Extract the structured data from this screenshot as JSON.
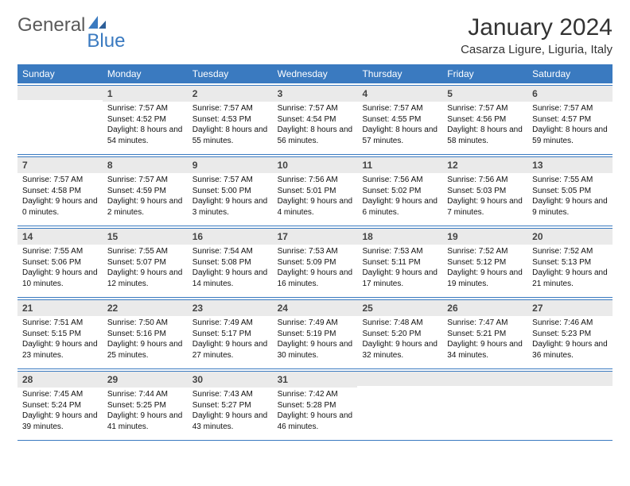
{
  "brand": {
    "name1": "General",
    "name2": "Blue"
  },
  "title": "January 2024",
  "location": "Casarza Ligure, Liguria, Italy",
  "colors": {
    "header_bg": "#3a7ac0",
    "header_text": "#ffffff",
    "daynum_bg": "#eaeaea",
    "rule": "#3a7ac0",
    "page_bg": "#ffffff",
    "text": "#000000",
    "logo_gray": "#5a5a5a",
    "logo_blue": "#3a7ac0"
  },
  "fonts": {
    "title_pt": 30,
    "location_pt": 15,
    "weekday_pt": 12,
    "daynum_pt": 12,
    "body_pt": 10
  },
  "weekdays": [
    "Sunday",
    "Monday",
    "Tuesday",
    "Wednesday",
    "Thursday",
    "Friday",
    "Saturday"
  ],
  "weeks": [
    [
      {
        "n": "",
        "sr": "",
        "ss": "",
        "dl": ""
      },
      {
        "n": "1",
        "sr": "Sunrise: 7:57 AM",
        "ss": "Sunset: 4:52 PM",
        "dl": "Daylight: 8 hours and 54 minutes."
      },
      {
        "n": "2",
        "sr": "Sunrise: 7:57 AM",
        "ss": "Sunset: 4:53 PM",
        "dl": "Daylight: 8 hours and 55 minutes."
      },
      {
        "n": "3",
        "sr": "Sunrise: 7:57 AM",
        "ss": "Sunset: 4:54 PM",
        "dl": "Daylight: 8 hours and 56 minutes."
      },
      {
        "n": "4",
        "sr": "Sunrise: 7:57 AM",
        "ss": "Sunset: 4:55 PM",
        "dl": "Daylight: 8 hours and 57 minutes."
      },
      {
        "n": "5",
        "sr": "Sunrise: 7:57 AM",
        "ss": "Sunset: 4:56 PM",
        "dl": "Daylight: 8 hours and 58 minutes."
      },
      {
        "n": "6",
        "sr": "Sunrise: 7:57 AM",
        "ss": "Sunset: 4:57 PM",
        "dl": "Daylight: 8 hours and 59 minutes."
      }
    ],
    [
      {
        "n": "7",
        "sr": "Sunrise: 7:57 AM",
        "ss": "Sunset: 4:58 PM",
        "dl": "Daylight: 9 hours and 0 minutes."
      },
      {
        "n": "8",
        "sr": "Sunrise: 7:57 AM",
        "ss": "Sunset: 4:59 PM",
        "dl": "Daylight: 9 hours and 2 minutes."
      },
      {
        "n": "9",
        "sr": "Sunrise: 7:57 AM",
        "ss": "Sunset: 5:00 PM",
        "dl": "Daylight: 9 hours and 3 minutes."
      },
      {
        "n": "10",
        "sr": "Sunrise: 7:56 AM",
        "ss": "Sunset: 5:01 PM",
        "dl": "Daylight: 9 hours and 4 minutes."
      },
      {
        "n": "11",
        "sr": "Sunrise: 7:56 AM",
        "ss": "Sunset: 5:02 PM",
        "dl": "Daylight: 9 hours and 6 minutes."
      },
      {
        "n": "12",
        "sr": "Sunrise: 7:56 AM",
        "ss": "Sunset: 5:03 PM",
        "dl": "Daylight: 9 hours and 7 minutes."
      },
      {
        "n": "13",
        "sr": "Sunrise: 7:55 AM",
        "ss": "Sunset: 5:05 PM",
        "dl": "Daylight: 9 hours and 9 minutes."
      }
    ],
    [
      {
        "n": "14",
        "sr": "Sunrise: 7:55 AM",
        "ss": "Sunset: 5:06 PM",
        "dl": "Daylight: 9 hours and 10 minutes."
      },
      {
        "n": "15",
        "sr": "Sunrise: 7:55 AM",
        "ss": "Sunset: 5:07 PM",
        "dl": "Daylight: 9 hours and 12 minutes."
      },
      {
        "n": "16",
        "sr": "Sunrise: 7:54 AM",
        "ss": "Sunset: 5:08 PM",
        "dl": "Daylight: 9 hours and 14 minutes."
      },
      {
        "n": "17",
        "sr": "Sunrise: 7:53 AM",
        "ss": "Sunset: 5:09 PM",
        "dl": "Daylight: 9 hours and 16 minutes."
      },
      {
        "n": "18",
        "sr": "Sunrise: 7:53 AM",
        "ss": "Sunset: 5:11 PM",
        "dl": "Daylight: 9 hours and 17 minutes."
      },
      {
        "n": "19",
        "sr": "Sunrise: 7:52 AM",
        "ss": "Sunset: 5:12 PM",
        "dl": "Daylight: 9 hours and 19 minutes."
      },
      {
        "n": "20",
        "sr": "Sunrise: 7:52 AM",
        "ss": "Sunset: 5:13 PM",
        "dl": "Daylight: 9 hours and 21 minutes."
      }
    ],
    [
      {
        "n": "21",
        "sr": "Sunrise: 7:51 AM",
        "ss": "Sunset: 5:15 PM",
        "dl": "Daylight: 9 hours and 23 minutes."
      },
      {
        "n": "22",
        "sr": "Sunrise: 7:50 AM",
        "ss": "Sunset: 5:16 PM",
        "dl": "Daylight: 9 hours and 25 minutes."
      },
      {
        "n": "23",
        "sr": "Sunrise: 7:49 AM",
        "ss": "Sunset: 5:17 PM",
        "dl": "Daylight: 9 hours and 27 minutes."
      },
      {
        "n": "24",
        "sr": "Sunrise: 7:49 AM",
        "ss": "Sunset: 5:19 PM",
        "dl": "Daylight: 9 hours and 30 minutes."
      },
      {
        "n": "25",
        "sr": "Sunrise: 7:48 AM",
        "ss": "Sunset: 5:20 PM",
        "dl": "Daylight: 9 hours and 32 minutes."
      },
      {
        "n": "26",
        "sr": "Sunrise: 7:47 AM",
        "ss": "Sunset: 5:21 PM",
        "dl": "Daylight: 9 hours and 34 minutes."
      },
      {
        "n": "27",
        "sr": "Sunrise: 7:46 AM",
        "ss": "Sunset: 5:23 PM",
        "dl": "Daylight: 9 hours and 36 minutes."
      }
    ],
    [
      {
        "n": "28",
        "sr": "Sunrise: 7:45 AM",
        "ss": "Sunset: 5:24 PM",
        "dl": "Daylight: 9 hours and 39 minutes."
      },
      {
        "n": "29",
        "sr": "Sunrise: 7:44 AM",
        "ss": "Sunset: 5:25 PM",
        "dl": "Daylight: 9 hours and 41 minutes."
      },
      {
        "n": "30",
        "sr": "Sunrise: 7:43 AM",
        "ss": "Sunset: 5:27 PM",
        "dl": "Daylight: 9 hours and 43 minutes."
      },
      {
        "n": "31",
        "sr": "Sunrise: 7:42 AM",
        "ss": "Sunset: 5:28 PM",
        "dl": "Daylight: 9 hours and 46 minutes."
      },
      {
        "n": "",
        "sr": "",
        "ss": "",
        "dl": ""
      },
      {
        "n": "",
        "sr": "",
        "ss": "",
        "dl": ""
      },
      {
        "n": "",
        "sr": "",
        "ss": "",
        "dl": ""
      }
    ]
  ]
}
